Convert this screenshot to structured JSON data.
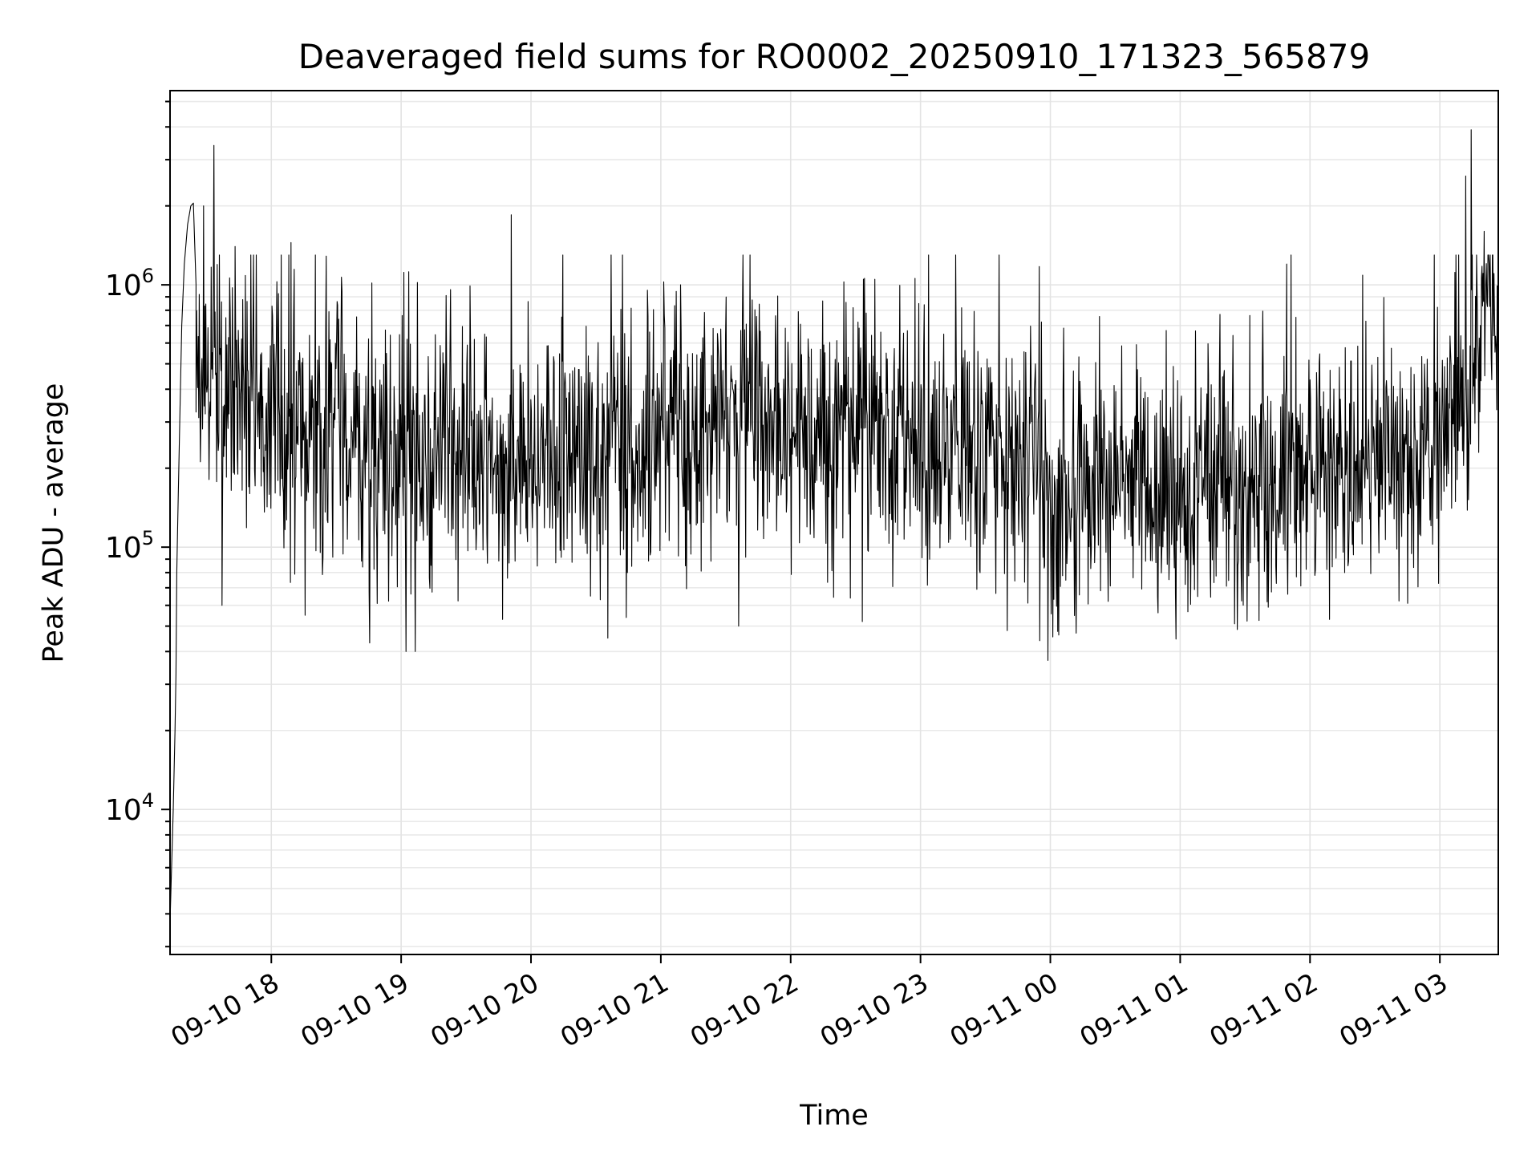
{
  "chart_data": {
    "type": "line",
    "title": "Deaveraged field sums for RO0002_20250910_171323_565879",
    "xlabel": "Time",
    "ylabel": "Peak ADU - average",
    "yscale": "log",
    "ylim": [
      2800,
      5500000
    ],
    "xlim_hours": [
      17.22,
      27.45
    ],
    "x_ticks": [
      {
        "label": "09-10 18",
        "hour": 18
      },
      {
        "label": "09-10 19",
        "hour": 19
      },
      {
        "label": "09-10 20",
        "hour": 20
      },
      {
        "label": "09-10 21",
        "hour": 21
      },
      {
        "label": "09-10 22",
        "hour": 22
      },
      {
        "label": "09-10 23",
        "hour": 23
      },
      {
        "label": "09-11 00",
        "hour": 24
      },
      {
        "label": "09-11 01",
        "hour": 25
      },
      {
        "label": "09-11 02",
        "hour": 26
      },
      {
        "label": "09-11 03",
        "hour": 27
      }
    ],
    "y_ticks": [
      {
        "base": "10",
        "exp": "4",
        "value": 10000
      },
      {
        "base": "10",
        "exp": "5",
        "value": 100000
      },
      {
        "base": "10",
        "exp": "6",
        "value": 1000000
      }
    ],
    "grid": true,
    "series": [
      {
        "name": "Deaveraged field sum",
        "color": "#000000",
        "ramp_points": [
          [
            17.222,
            4000
          ],
          [
            17.232,
            6000
          ],
          [
            17.245,
            10000
          ],
          [
            17.258,
            20000
          ],
          [
            17.266,
            33000
          ],
          [
            17.272,
            80000
          ],
          [
            17.28,
            130000
          ],
          [
            17.295,
            300000
          ],
          [
            17.31,
            700000
          ],
          [
            17.33,
            1200000
          ],
          [
            17.355,
            1700000
          ],
          [
            17.38,
            2000000
          ],
          [
            17.4,
            2050000
          ],
          [
            17.42,
            1000000
          ]
        ],
        "noise_profile": [
          [
            17.42,
            500000
          ],
          [
            17.8,
            380000
          ],
          [
            18.5,
            260000
          ],
          [
            19.0,
            190000
          ],
          [
            19.6,
            210000
          ],
          [
            20.0,
            200000
          ],
          [
            20.6,
            230000
          ],
          [
            21.3,
            300000
          ],
          [
            21.8,
            310000
          ],
          [
            22.5,
            260000
          ],
          [
            23.0,
            220000
          ],
          [
            23.7,
            200000
          ],
          [
            24.0,
            160000
          ],
          [
            24.5,
            160000
          ],
          [
            25.0,
            165000
          ],
          [
            25.5,
            165000
          ],
          [
            26.0,
            190000
          ],
          [
            26.8,
            210000
          ],
          [
            27.15,
            300000
          ],
          [
            27.35,
            800000
          ],
          [
            27.45,
            900000
          ]
        ],
        "spikes": [
          [
            17.56,
            3400000
          ],
          [
            17.48,
            2000000
          ],
          [
            17.72,
            1400000
          ],
          [
            18.15,
            1450000
          ],
          [
            19.85,
            1850000
          ],
          [
            21.15,
            1000000
          ],
          [
            22.65,
            1050000
          ],
          [
            25.82,
            1200000
          ],
          [
            27.2,
            2600000
          ],
          [
            27.24,
            3900000
          ],
          [
            27.34,
            1600000
          ],
          [
            18.26,
            55000
          ],
          [
            19.78,
            53000
          ],
          [
            20.59,
            45000
          ],
          [
            22.55,
            52000
          ],
          [
            23.92,
            44000
          ],
          [
            23.98,
            37000
          ],
          [
            24.2,
            47000
          ],
          [
            25.42,
            51000
          ],
          [
            25.68,
            59000
          ],
          [
            26.15,
            53000
          ],
          [
            17.62,
            60000
          ],
          [
            21.6,
            50000
          ]
        ],
        "sample_count": 2400
      }
    ]
  }
}
